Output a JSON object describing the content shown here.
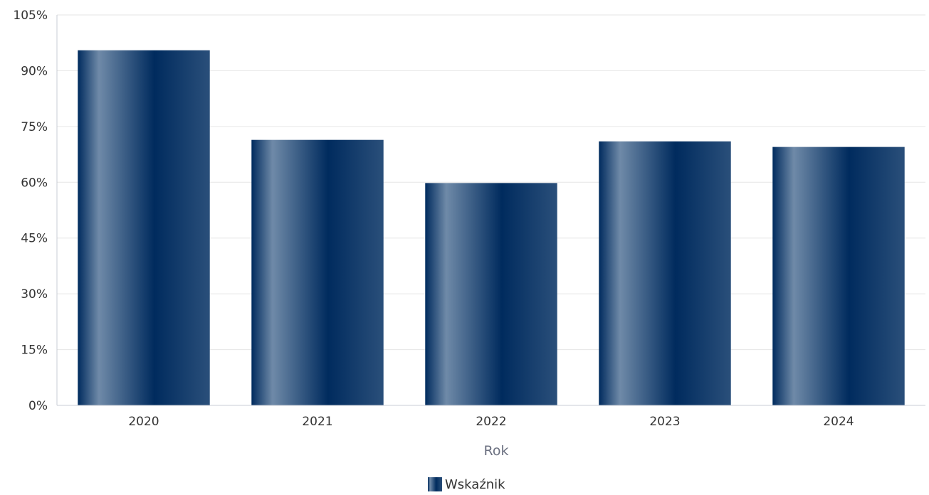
{
  "chart_data": {
    "type": "bar",
    "categories": [
      "2020",
      "2021",
      "2022",
      "2023",
      "2024"
    ],
    "series": [
      {
        "name": "Wskaźnik",
        "values": [
          95.5,
          71.4,
          59.8,
          71.0,
          69.5
        ],
        "color": "#0b3366"
      }
    ],
    "xlabel": "Rok",
    "ylabel": "",
    "ylim": [
      0,
      105
    ],
    "yticks": [
      0,
      15,
      30,
      45,
      60,
      75,
      90,
      105
    ],
    "y_tick_suffix": "%",
    "grid": true,
    "legend_position": "bottom-center",
    "colors": {
      "bar_dark": "#002b5e",
      "bar_light": "#6f8aa8",
      "grid": "#e6e6e6",
      "axis": "#c8ccd4"
    }
  }
}
